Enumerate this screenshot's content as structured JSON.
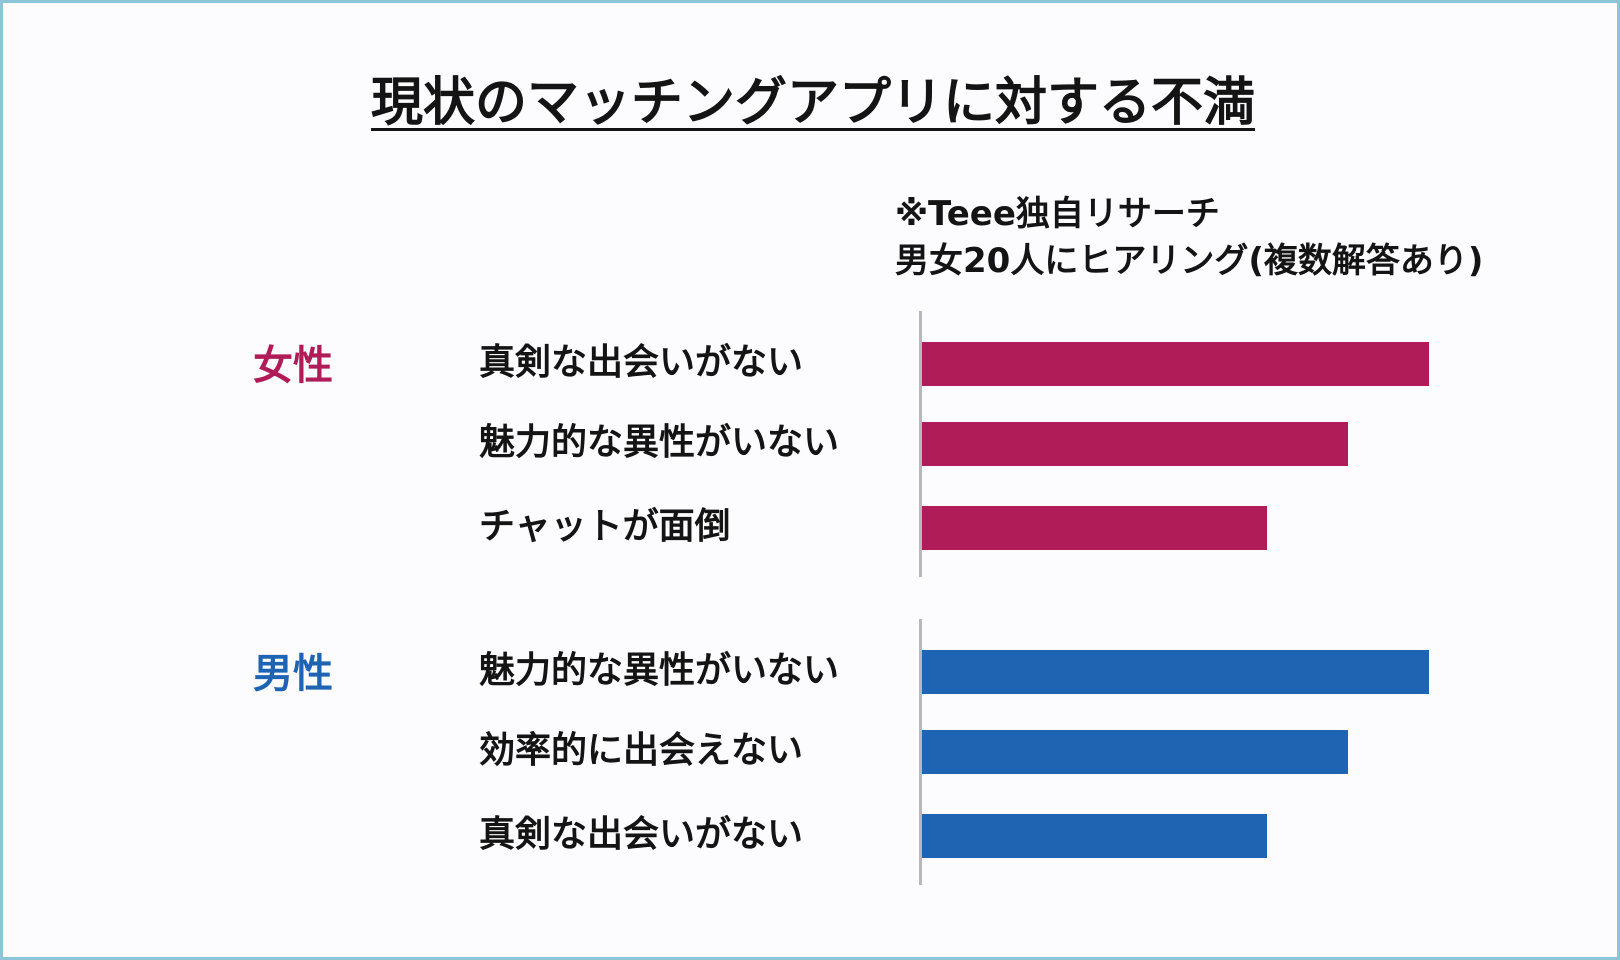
{
  "title": "現状のマッチングアプリに対する不満",
  "note": {
    "line1": "※Teee独自リサーチ",
    "line2": "男女20人にヒアリング(複数解答あり)"
  },
  "colors": {
    "female": "#b01c58",
    "male": "#1f63b3"
  },
  "chart_data": {
    "type": "bar",
    "orientation": "horizontal",
    "axis_visible": false,
    "grid": false,
    "groups": [
      {
        "name": "女性",
        "categories": [
          "真剣な出会いがない",
          "魅力的な異性がいない",
          "チャットが面倒"
        ],
        "values": [
          100,
          84,
          68
        ]
      },
      {
        "name": "男性",
        "categories": [
          "魅力的な異性がいない",
          "効率的に出会えない",
          "真剣な出会いがない"
        ],
        "values": [
          100,
          84,
          68
        ]
      }
    ]
  }
}
